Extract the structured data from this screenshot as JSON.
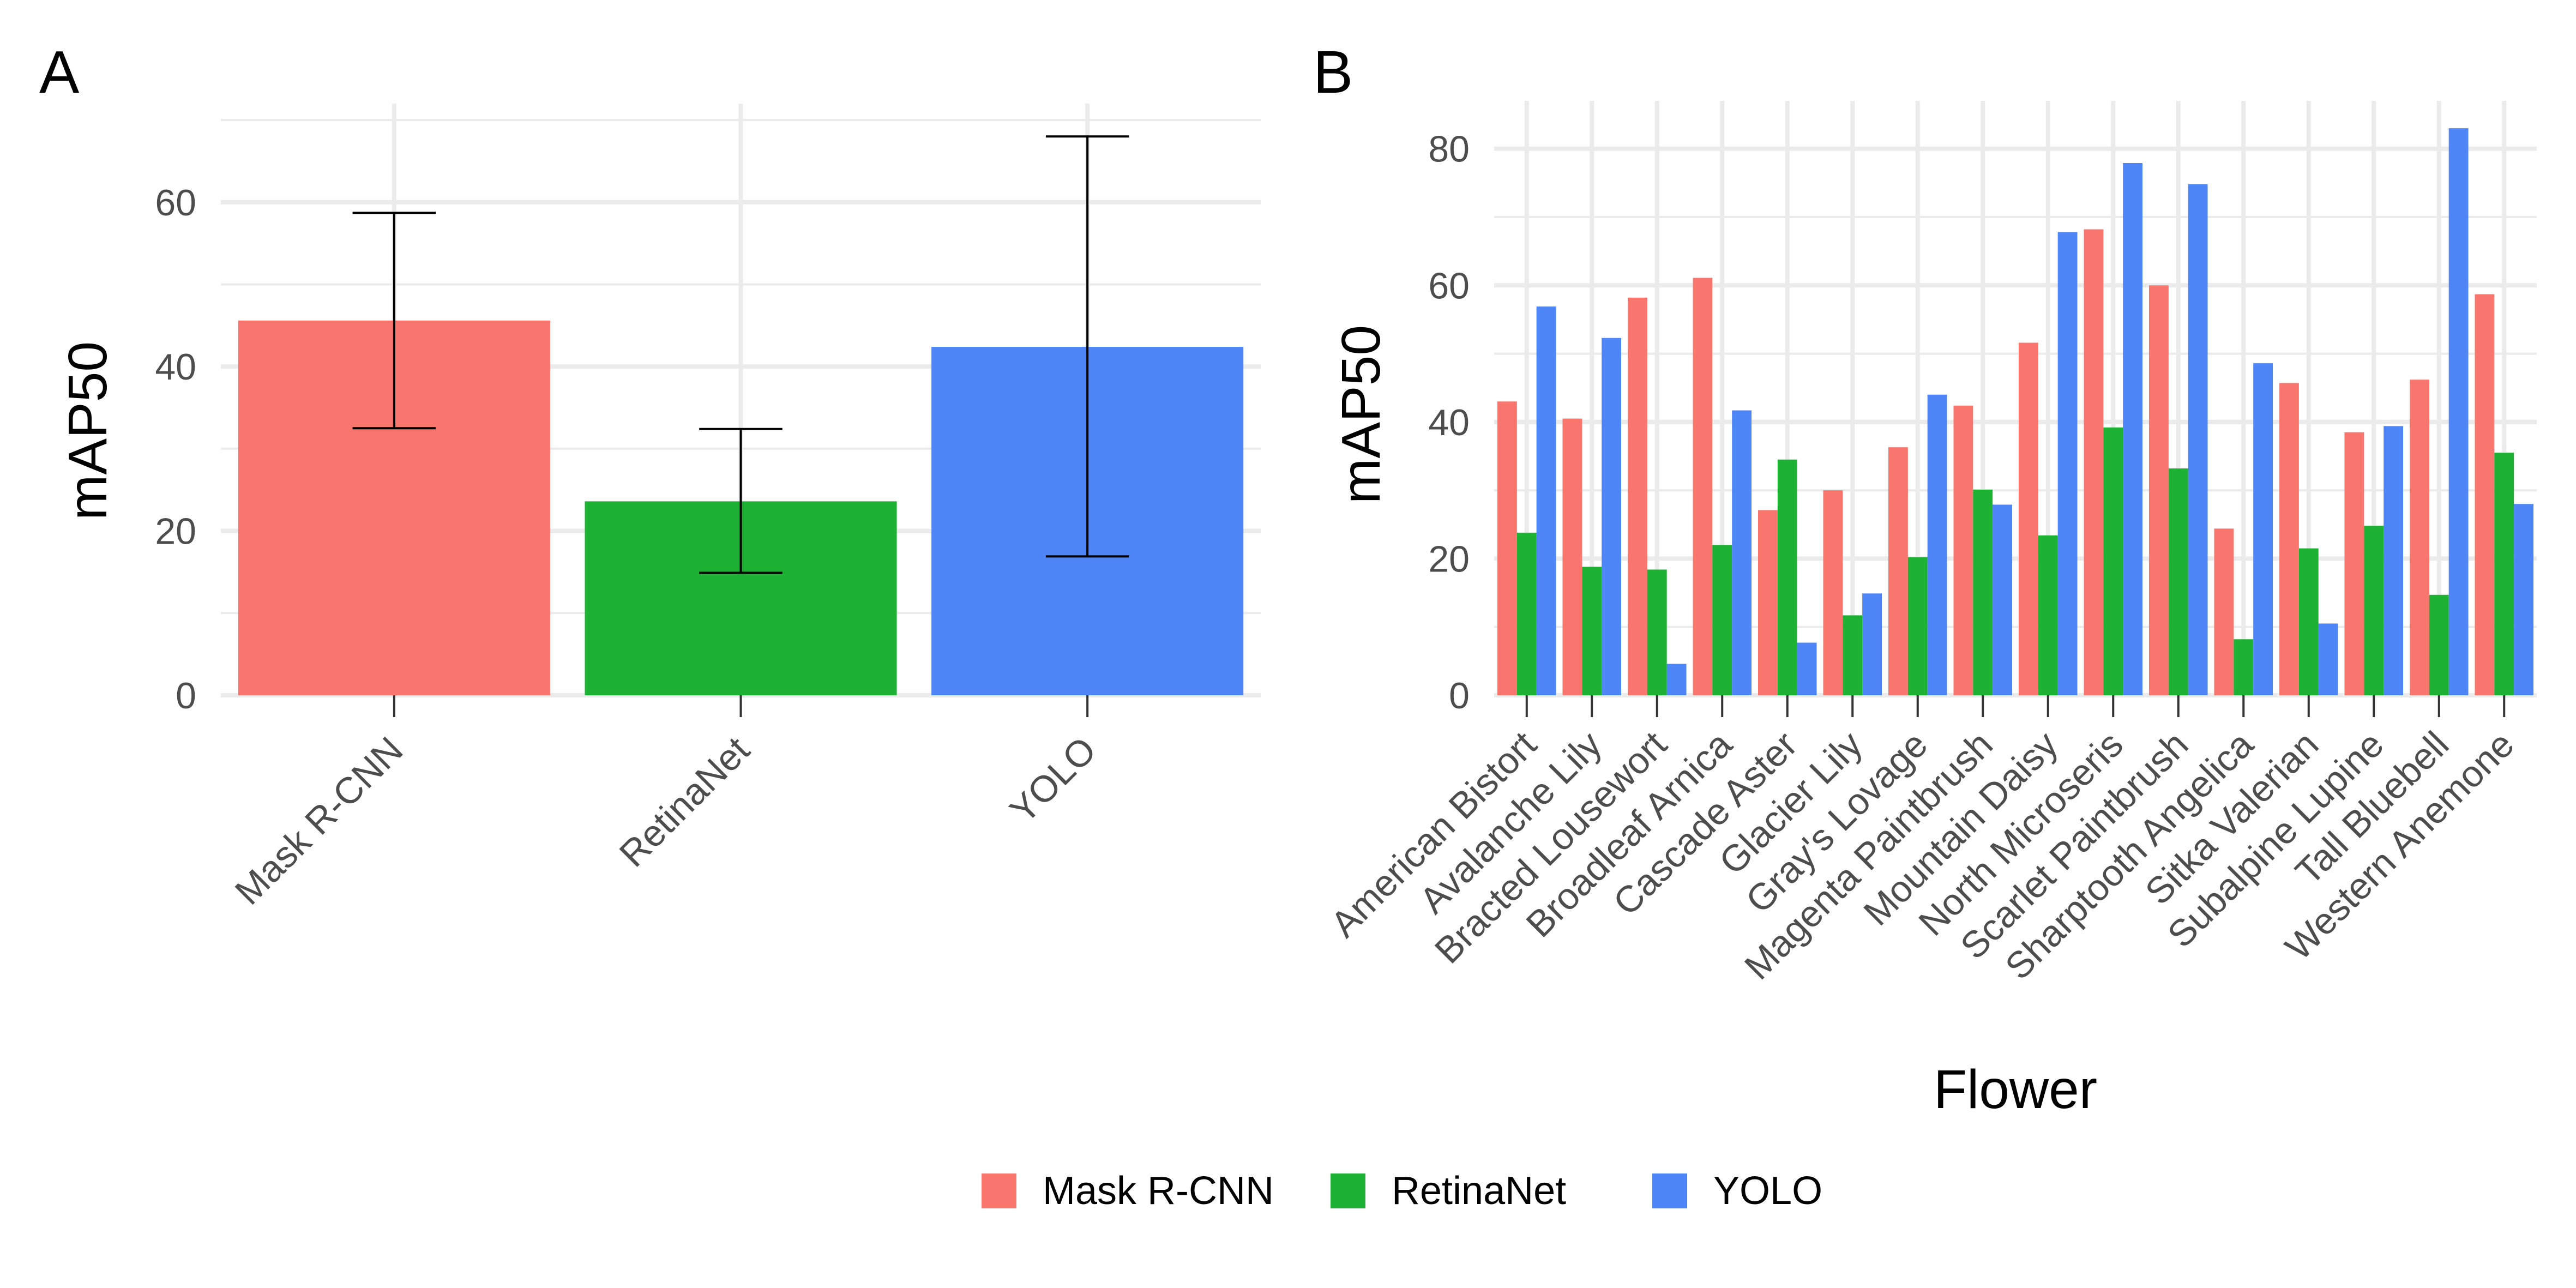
{
  "colors": {
    "Mask R-CNN": "#F8766D",
    "RetinaNet": "#1DB233",
    "YOLO": "#4F86F7",
    "grid": "#ebebeb",
    "errorbar": "#000000"
  },
  "legend": {
    "placement": "bottom",
    "items": [
      "Mask R-CNN",
      "RetinaNet",
      "YOLO"
    ]
  },
  "chart_data": [
    {
      "panel": "A",
      "type": "bar",
      "categories": [
        "Mask R-CNN",
        "RetinaNet",
        "YOLO"
      ],
      "values": [
        45.6,
        23.6,
        42.4
      ],
      "error_low": [
        32.5,
        14.9,
        16.9
      ],
      "error_high": [
        58.7,
        32.4,
        68.0
      ],
      "xlabel": "",
      "ylabel": "mAP50",
      "ylim": [
        0,
        72
      ],
      "yticks": [
        0,
        20,
        40,
        60
      ],
      "grid": true
    },
    {
      "panel": "B",
      "type": "bar",
      "categories": [
        "American Bistort",
        "Avalanche Lily",
        "Bracted Lousewort",
        "Broadleaf Arnica",
        "Cascade Aster",
        "Glacier Lily",
        "Gray's Lovage",
        "Magenta Paintbrush",
        "Mountain Daisy",
        "North Microseris",
        "Scarlet Paintbrush",
        "Sharptooth Angelica",
        "Sitka Valerian",
        "Subalpine Lupine",
        "Tall Bluebell",
        "Western Anemone"
      ],
      "series": [
        {
          "name": "Mask R-CNN",
          "values": [
            43.0,
            40.5,
            58.2,
            61.1,
            27.1,
            30.0,
            36.3,
            42.4,
            51.6,
            68.2,
            60.0,
            24.4,
            45.7,
            38.5,
            46.2,
            58.7
          ]
        },
        {
          "name": "RetinaNet",
          "values": [
            23.8,
            18.8,
            18.4,
            22.0,
            34.5,
            11.7,
            20.2,
            30.1,
            23.4,
            39.2,
            33.2,
            8.2,
            21.5,
            24.8,
            14.7,
            35.5
          ]
        },
        {
          "name": "YOLO",
          "values": [
            56.9,
            52.3,
            4.6,
            41.7,
            7.7,
            14.9,
            44.0,
            27.9,
            67.8,
            77.9,
            74.8,
            48.6,
            10.5,
            39.4,
            83.0,
            28.0
          ]
        }
      ],
      "xlabel": "Flower",
      "ylabel": "mAP50",
      "ylim": [
        0,
        87
      ],
      "yticks": [
        0,
        20,
        40,
        60,
        80
      ],
      "grid": true
    }
  ]
}
